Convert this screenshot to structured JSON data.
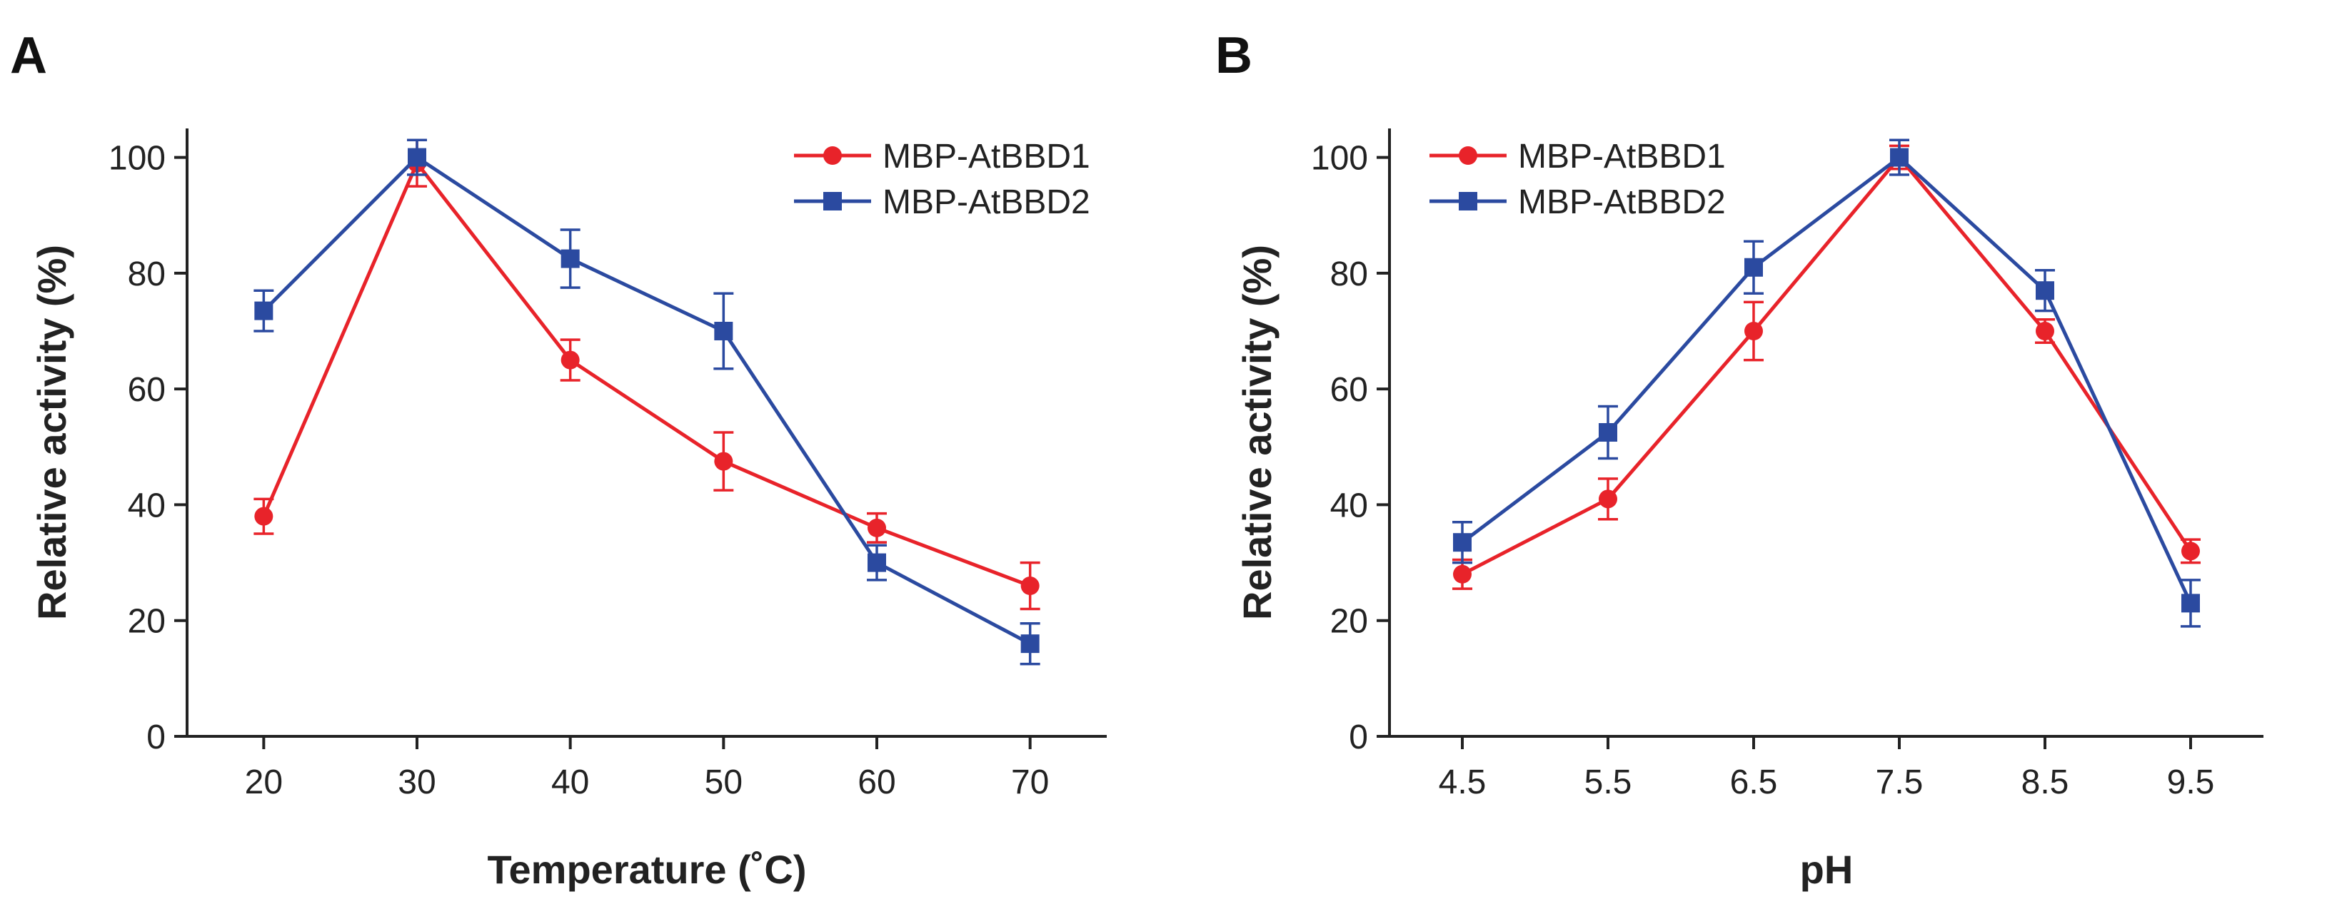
{
  "colors": {
    "MBP-AtBBD1": "#e8232a",
    "MBP-AtBBD2": "#2b4aa0",
    "axis": "#222222"
  },
  "chart_data": [
    {
      "panel": "A",
      "type": "line",
      "xlabel": "Temperature (˚C)",
      "ylabel": "Relative activity (%)",
      "x": [
        20,
        30,
        40,
        50,
        60,
        70
      ],
      "x_tick_labels": [
        "20",
        "30",
        "40",
        "50",
        "60",
        "70"
      ],
      "xlim": [
        15,
        75
      ],
      "ylim": [
        0,
        105
      ],
      "y_ticks": [
        0,
        20,
        40,
        60,
        80,
        100
      ],
      "y_tick_labels": [
        "0",
        "20",
        "40",
        "60",
        "80",
        "100"
      ],
      "grid": false,
      "legend_position": "top-right",
      "series": [
        {
          "name": "MBP-AtBBD1",
          "marker": "circle",
          "values": [
            38,
            99,
            65,
            47.5,
            36,
            26
          ],
          "errors": [
            3,
            4,
            3.5,
            5,
            2.5,
            4
          ]
        },
        {
          "name": "MBP-AtBBD2",
          "marker": "square",
          "values": [
            73.5,
            100,
            82.5,
            70,
            30,
            16
          ],
          "errors": [
            3.5,
            3,
            5,
            6.5,
            3,
            3.5
          ]
        }
      ]
    },
    {
      "panel": "B",
      "type": "line",
      "xlabel": "pH",
      "ylabel": "Relative activity (%)",
      "x": [
        4.5,
        5.5,
        6.5,
        7.5,
        8.5,
        9.5
      ],
      "x_tick_labels": [
        "4.5",
        "5.5",
        "6.5",
        "7.5",
        "8.5",
        "9.5"
      ],
      "xlim": [
        4,
        10
      ],
      "ylim": [
        0,
        105
      ],
      "y_ticks": [
        0,
        20,
        40,
        60,
        80,
        100
      ],
      "y_tick_labels": [
        "0",
        "20",
        "40",
        "60",
        "80",
        "100"
      ],
      "grid": false,
      "legend_position": "top-left",
      "series": [
        {
          "name": "MBP-AtBBD1",
          "marker": "circle",
          "values": [
            28,
            41,
            70,
            100,
            70,
            32
          ],
          "errors": [
            2.5,
            3.5,
            5,
            2,
            2,
            2
          ]
        },
        {
          "name": "MBP-AtBBD2",
          "marker": "square",
          "values": [
            33.5,
            52.5,
            81,
            100,
            77,
            23
          ],
          "errors": [
            3.5,
            4.5,
            4.5,
            3,
            3.5,
            4
          ]
        }
      ]
    }
  ]
}
